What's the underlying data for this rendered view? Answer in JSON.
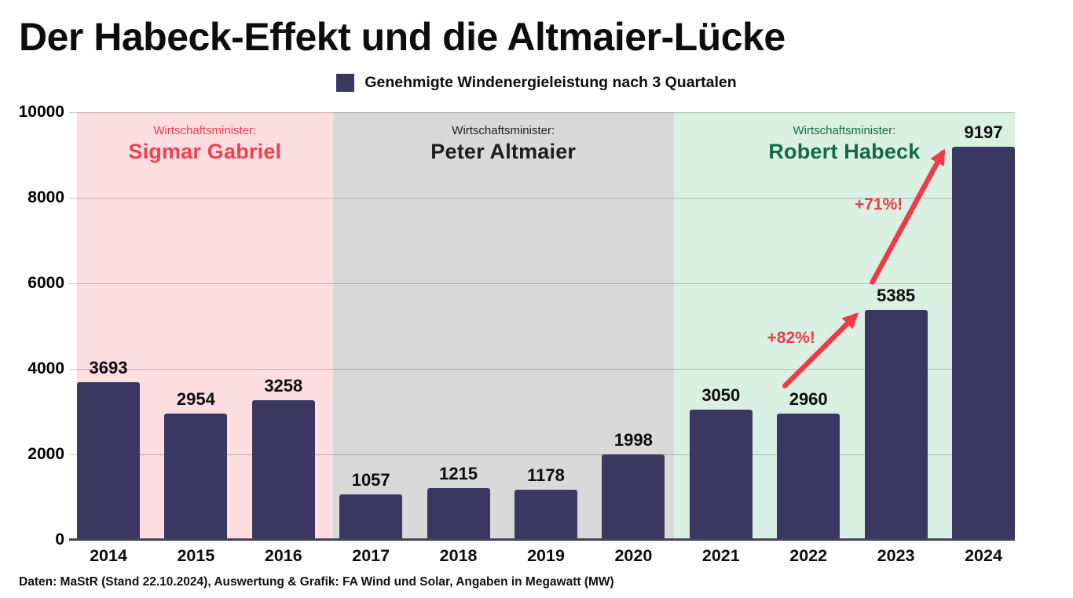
{
  "title": "Der Habeck-Effekt und die Altmaier-Lücke",
  "legend": {
    "label": "Genehmigte Windenergieleistung nach 3 Quartalen"
  },
  "footer": "Daten: MaStR (Stand 22.10.2024), Auswertung & Grafik: FA Wind und Solar, Angaben in Megawatt (MW)",
  "chart_data": {
    "type": "bar",
    "title": "Genehmigte Windenergieleistung nach 3 Quartalen",
    "categories": [
      "2014",
      "2015",
      "2016",
      "2017",
      "2018",
      "2019",
      "2020",
      "2021",
      "2022",
      "2023",
      "2024"
    ],
    "values": [
      3693,
      2954,
      3258,
      1057,
      1215,
      1178,
      1998,
      3050,
      2960,
      5385,
      9197
    ],
    "unit": "Megawatt (MW)",
    "xlabel": "",
    "ylabel": "",
    "ylim": [
      0,
      10000
    ],
    "yticks": [
      0,
      2000,
      4000,
      6000,
      8000,
      10000
    ],
    "grid": true,
    "legend_position": "top",
    "bar_color": "#3a3761",
    "axis_color": "#45425c",
    "regions": [
      {
        "prefix": "Wirtschaftsminister:",
        "name": "Sigmar Gabriel",
        "start_year": "2014",
        "end_year": "2016",
        "bg": "#fcdee1",
        "text_color": "#ee4150"
      },
      {
        "prefix": "Wirtschaftsminister:",
        "name": "Peter Altmaier",
        "start_year": "2017",
        "end_year": "2020",
        "bg": "#d9d9d9",
        "text_color": "#1d1d1f"
      },
      {
        "prefix": "Wirtschaftsminister:",
        "name": "Robert Habeck",
        "start_year": "2021",
        "end_year": "2024",
        "bg": "#d9f0e3",
        "text_color": "#14694a"
      }
    ],
    "annotations": [
      {
        "text": "+82%!",
        "from_year": "2022",
        "to_year": "2023",
        "color": "#ee3b47"
      },
      {
        "text": "+71%!",
        "from_year": "2023",
        "to_year": "2024",
        "color": "#ee3b47"
      }
    ]
  }
}
